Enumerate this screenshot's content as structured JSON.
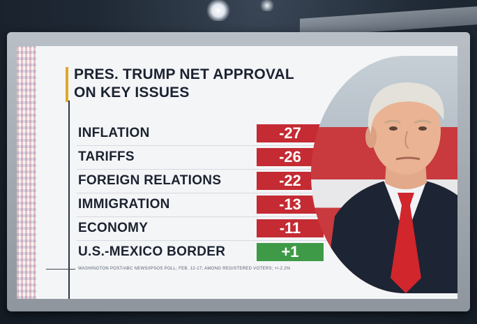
{
  "title_lines": [
    "PRES. TRUMP NET APPROVAL",
    "ON KEY ISSUES"
  ],
  "source": "WASHINGTON POST/ABC NEWS/IPSOS POLL; FEB. 12-17; AMONG REGISTERED VOTERS; +/-2.2%",
  "colors": {
    "negative": "#c42b33",
    "positive": "#3f9a47",
    "accent": "#e0a92a"
  },
  "chart_data": {
    "type": "bar",
    "title": "PRES. TRUMP NET APPROVAL ON KEY ISSUES",
    "categories": [
      "INFLATION",
      "TARIFFS",
      "FOREIGN RELATIONS",
      "IMMIGRATION",
      "ECONOMY",
      "U.S.-MEXICO BORDER"
    ],
    "values": [
      -27,
      -26,
      -22,
      -13,
      -11,
      1
    ],
    "value_labels": [
      "-27",
      "-26",
      "-22",
      "-13",
      "-11",
      "+1"
    ]
  }
}
